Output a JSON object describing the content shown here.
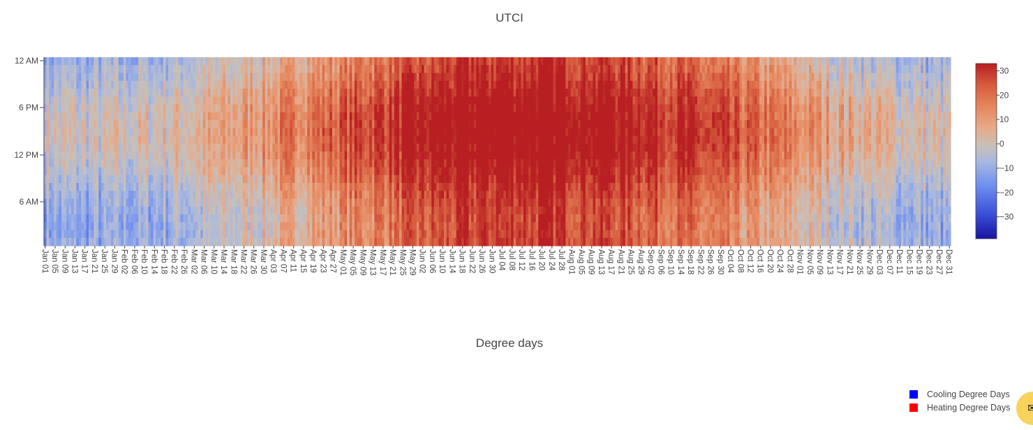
{
  "chart_data": [
    {
      "type": "heatmap",
      "title": "UTCI",
      "x_ticks": [
        "Jan 01",
        "Jan 05",
        "Jan 09",
        "Jan 13",
        "Jan 17",
        "Jan 21",
        "Jan 25",
        "Jan 29",
        "Feb 02",
        "Feb 06",
        "Feb 10",
        "Feb 14",
        "Feb 18",
        "Feb 22",
        "Feb 26",
        "Mar 02",
        "Mar 06",
        "Mar 10",
        "Mar 14",
        "Mar 18",
        "Mar 22",
        "Mar 26",
        "Mar 30",
        "Apr 03",
        "Apr 07",
        "Apr 11",
        "Apr 15",
        "Apr 19",
        "Apr 23",
        "Apr 27",
        "May 01",
        "May 05",
        "May 09",
        "May 13",
        "May 17",
        "May 21",
        "May 25",
        "May 29",
        "Jun 02",
        "Jun 06",
        "Jun 10",
        "Jun 14",
        "Jun 18",
        "Jun 22",
        "Jun 26",
        "Jun 30",
        "Jul 04",
        "Jul 08",
        "Jul 12",
        "Jul 16",
        "Jul 20",
        "Jul 24",
        "Jul 28",
        "Aug 01",
        "Aug 05",
        "Aug 09",
        "Aug 13",
        "Aug 17",
        "Aug 21",
        "Aug 25",
        "Aug 29",
        "Sep 02",
        "Sep 06",
        "Sep 10",
        "Sep 14",
        "Sep 18",
        "Sep 22",
        "Sep 26",
        "Sep 30",
        "Oct 04",
        "Oct 08",
        "Oct 12",
        "Oct 16",
        "Oct 20",
        "Oct 24",
        "Oct 28",
        "Nov 01",
        "Nov 05",
        "Nov 09",
        "Nov 13",
        "Nov 17",
        "Nov 21",
        "Nov 25",
        "Nov 29",
        "Dec 03",
        "Dec 07",
        "Dec 11",
        "Dec 15",
        "Dec 19",
        "Dec 23",
        "Dec 27",
        "Dec 31"
      ],
      "y_ticks": [
        "12 AM",
        "6 PM",
        "12 PM",
        "6 AM"
      ],
      "colorscale": [
        "#1a13a0",
        "#3a4fd6",
        "#6e8ef0",
        "#a8b8e0",
        "#c8c0b8",
        "#e8a887",
        "#e4855c",
        "#d65a3e",
        "#b81f22"
      ],
      "colorbar": {
        "ticks": [
          30,
          20,
          10,
          0,
          -10,
          -20,
          -30
        ],
        "range": [
          -39,
          33
        ]
      },
      "days": 365,
      "hours": 24
    },
    {
      "type": "bar",
      "title": "Degree days",
      "series": [
        {
          "name": "Cooling Degree Days",
          "color": "#0000ff"
        },
        {
          "name": "Heating Degree Days",
          "color": "#ff0000"
        }
      ]
    }
  ],
  "colorbar_labels": [
    "30",
    "20",
    "10",
    "0",
    "−10",
    "−20",
    "−30"
  ],
  "chat_glyph": "✉"
}
